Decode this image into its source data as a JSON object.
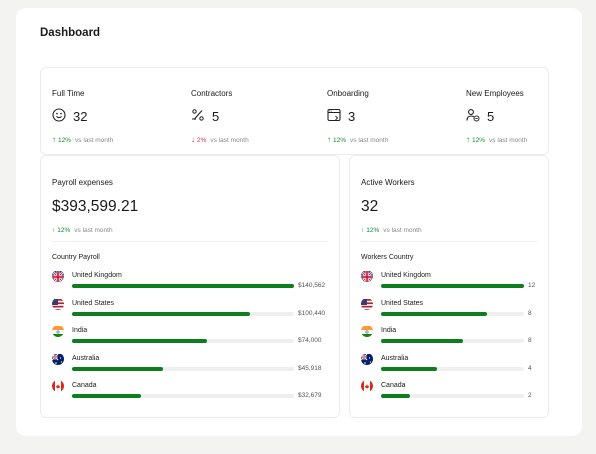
{
  "dashboard": {
    "title": "Dashboard"
  },
  "stats": [
    {
      "label": "Full Time",
      "value": "32",
      "icon": "smiley-icon",
      "delta_dir": "up",
      "delta_arrow": "↑",
      "delta": "12%",
      "delta_suffix": "vs last month"
    },
    {
      "label": "Contractors",
      "value": "5",
      "icon": "percent-tag-icon",
      "delta_dir": "down",
      "delta_arrow": "↓",
      "delta": "2%",
      "delta_suffix": "vs last month"
    },
    {
      "label": "Onboarding",
      "value": "3",
      "icon": "browser-window-icon",
      "delta_dir": "up",
      "delta_arrow": "↑",
      "delta": "12%",
      "delta_suffix": "vs last month"
    },
    {
      "label": "New Employees",
      "value": "5",
      "icon": "user-add-icon",
      "delta_dir": "up",
      "delta_arrow": "↑",
      "delta": "12%",
      "delta_suffix": "vs last month"
    }
  ],
  "payroll": {
    "title": "Payroll expenses",
    "value": "$393,599.21",
    "delta_arrow": "↑",
    "delta": "12%",
    "delta_suffix": "vs last month",
    "section_title": "Country Payroll",
    "rows": [
      {
        "country": "United Kingdom",
        "flag": "uk",
        "value": "$140,562",
        "fraction": 1.0
      },
      {
        "country": "United States",
        "flag": "us",
        "value": "$100,440",
        "fraction": 0.8
      },
      {
        "country": "India",
        "flag": "in",
        "value": "$74,000",
        "fraction": 0.61
      },
      {
        "country": "Australia",
        "flag": "au",
        "value": "$45,918",
        "fraction": 0.41
      },
      {
        "country": "Canada",
        "flag": "ca",
        "value": "$32,679",
        "fraction": 0.31
      }
    ]
  },
  "workers": {
    "title": "Active Workers",
    "value": "32",
    "delta_arrow": "↑",
    "delta": "12%",
    "delta_suffix": "vs last month",
    "section_title": "Workers Country",
    "rows": [
      {
        "country": "United Kingdom",
        "flag": "uk",
        "value": "12",
        "fraction": 1.0
      },
      {
        "country": "United States",
        "flag": "us",
        "value": "8",
        "fraction": 0.74
      },
      {
        "country": "India",
        "flag": "in",
        "value": "8",
        "fraction": 0.57
      },
      {
        "country": "Australia",
        "flag": "au",
        "value": "4",
        "fraction": 0.39
      },
      {
        "country": "Canada",
        "flag": "ca",
        "value": "2",
        "fraction": 0.2
      }
    ]
  },
  "colors": {
    "accent": "#0d7d1e",
    "up": "#0f8a2e",
    "down": "#d23a3a"
  }
}
